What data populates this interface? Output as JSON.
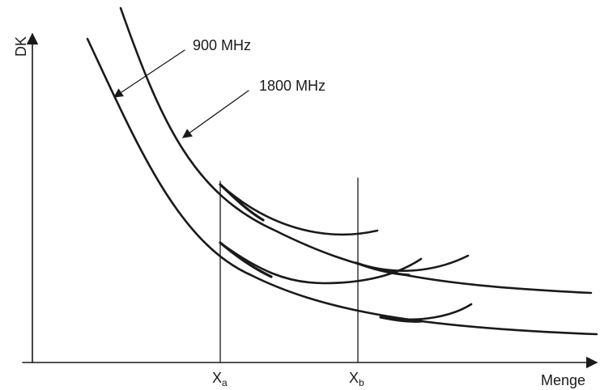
{
  "y_axis_label": "DK",
  "x_axis_label": "Menge",
  "curve_labels": [
    "900 MHz",
    "1800 MHz"
  ],
  "x_ticks": [
    {
      "main": "X",
      "sub": "a"
    },
    {
      "main": "X",
      "sub": "b"
    }
  ]
}
